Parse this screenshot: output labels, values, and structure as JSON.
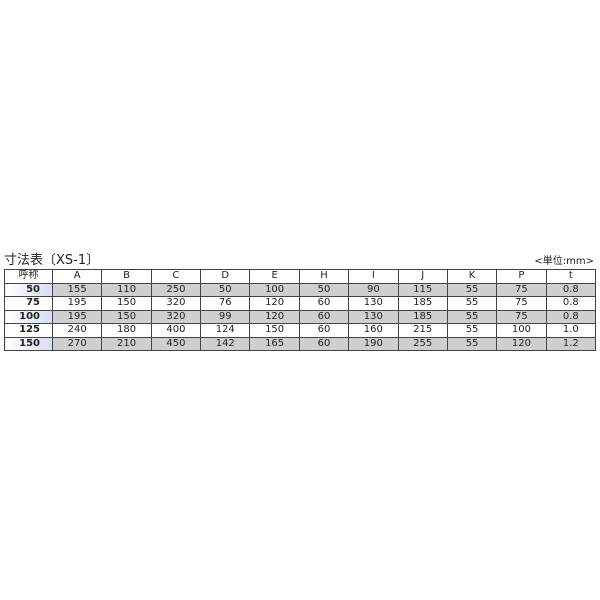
{
  "title": "寸法表〔XS-1〕",
  "unit": "<単位:mm>",
  "columns": [
    "呼称",
    "A",
    "B",
    "C",
    "D",
    "E",
    "H",
    "I",
    "J",
    "K",
    "P",
    "t"
  ],
  "rows": [
    [
      "50",
      "155",
      "110",
      "250",
      "50",
      "100",
      "50",
      "90",
      "115",
      "55",
      "75",
      "0.8"
    ],
    [
      "75",
      "195",
      "150",
      "320",
      "76",
      "120",
      "60",
      "130",
      "185",
      "55",
      "75",
      "0.8"
    ],
    [
      "100",
      "195",
      "150",
      "320",
      "99",
      "120",
      "60",
      "130",
      "185",
      "55",
      "75",
      "0.8"
    ],
    [
      "125",
      "240",
      "180",
      "400",
      "124",
      "150",
      "60",
      "160",
      "215",
      "55",
      "100",
      "1.0"
    ],
    [
      "150",
      "270",
      "210",
      "450",
      "142",
      "165",
      "60",
      "190",
      "255",
      "55",
      "120",
      "1.2"
    ]
  ]
}
